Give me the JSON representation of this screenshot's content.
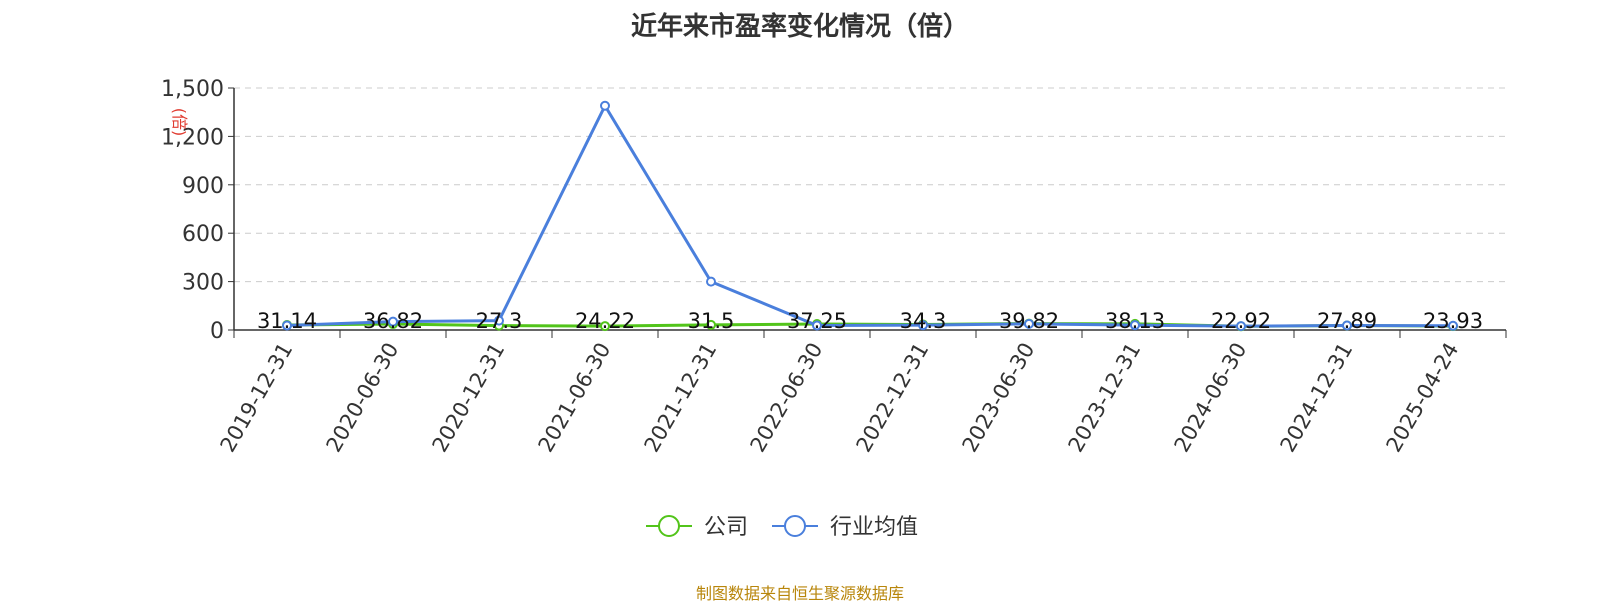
{
  "title": "近年来市盈率变化情况（倍）",
  "footer": "制图数据来自恒生聚源数据库",
  "chart_data": {
    "type": "line",
    "title": "近年来市盈率变化情况（倍）",
    "ylabel": "(倍)",
    "ylim": [
      0,
      1500
    ],
    "yticks": [
      0,
      300,
      600,
      900,
      1200,
      1500
    ],
    "ytick_labels": [
      "0",
      "300",
      "600",
      "900",
      "1,200",
      "1,500"
    ],
    "grid": true,
    "legend_position": "bottom-center",
    "categories": [
      "2019-12-31",
      "2020-06-30",
      "2020-12-31",
      "2021-06-30",
      "2021-12-31",
      "2022-06-30",
      "2022-12-31",
      "2023-06-30",
      "2023-12-31",
      "2024-06-30",
      "2024-12-31",
      "2025-04-24"
    ],
    "series": [
      {
        "name": "公司",
        "color": "#52c41a",
        "values": [
          31.14,
          36.82,
          27.3,
          24.22,
          31.5,
          37.25,
          34.3,
          39.82,
          38.13,
          22.92,
          27.89,
          23.93
        ],
        "labels": [
          "31.14",
          "36.82",
          "27.3",
          "24.22",
          "31.5",
          "37.25",
          "34.3",
          "39.82",
          "38.13",
          "22.92",
          "27.89",
          "23.93"
        ]
      },
      {
        "name": "行业均值",
        "color": "#4a7fdc",
        "values": [
          28,
          52,
          58,
          1390,
          300,
          28,
          30,
          38,
          30,
          24,
          28,
          26
        ]
      }
    ]
  }
}
